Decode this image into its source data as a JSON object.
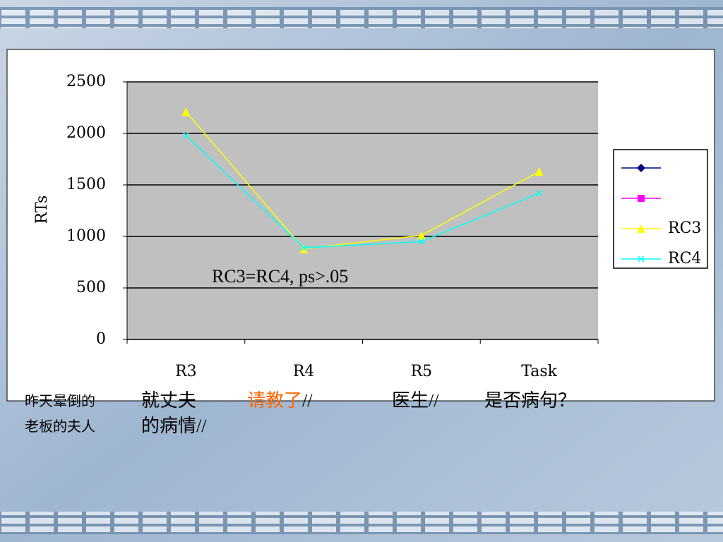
{
  "chart_data": {
    "type": "line",
    "categories": [
      "R3",
      "R4",
      "R5",
      "Task"
    ],
    "series": [
      {
        "color": "#000080",
        "marker": "diamond",
        "values": [
          null,
          null,
          null,
          null
        ]
      },
      {
        "color": "#ff00ff",
        "marker": "square",
        "values": [
          null,
          null,
          null,
          null
        ]
      },
      {
        "name": "RC3",
        "color": "#ffff00",
        "marker": "triangle",
        "values": [
          2210,
          880,
          1010,
          1630
        ]
      },
      {
        "name": "RC4",
        "color": "#00ffff",
        "marker": "x",
        "values": [
          1980,
          890,
          950,
          1420
        ]
      }
    ],
    "ylabel": "RTs",
    "ylim": [
      0,
      2500
    ],
    "yticks": [
      0,
      500,
      1000,
      1500,
      2000,
      2500
    ],
    "grid": true,
    "annotation": "RC3=RC4, ps>.05"
  },
  "captions": [
    {
      "lines": [
        [
          {
            "text": "昨天晕倒的"
          }
        ],
        [
          {
            "text": "老板的夫人"
          }
        ]
      ]
    },
    {
      "lines": [
        [
          {
            "text": "就丈夫"
          }
        ],
        [
          {
            "text": "的病情//"
          }
        ]
      ]
    },
    {
      "lines": [
        [
          {
            "text": "请教了",
            "color": "#ff6600"
          },
          {
            "text": "//"
          }
        ]
      ]
    },
    {
      "lines": [
        [
          {
            "text": "医生//"
          }
        ]
      ]
    },
    {
      "lines": [
        [
          {
            "text": "是否病句？"
          }
        ]
      ]
    }
  ]
}
